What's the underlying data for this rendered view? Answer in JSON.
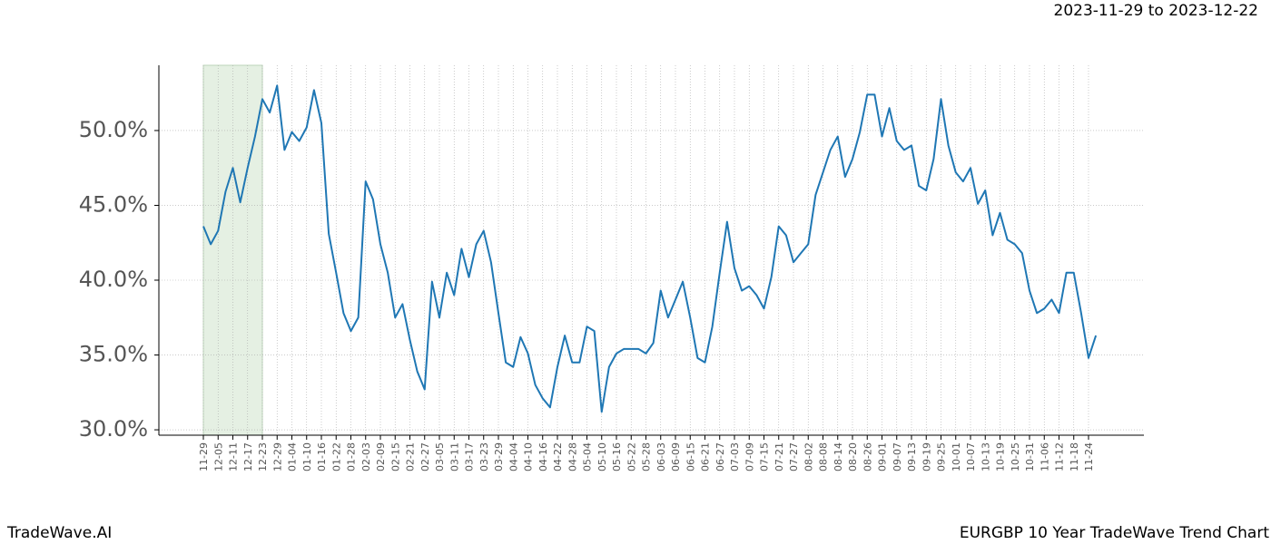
{
  "chart_data": {
    "type": "line",
    "title": "2023-11-29 to 2023-12-22",
    "footer_left": "TradeWave.AI",
    "footer_right": "EURGBP 10 Year TradeWave Trend Chart",
    "categories": [
      "11-29",
      null,
      "12-05",
      null,
      "12-11",
      null,
      "12-17",
      null,
      "12-23",
      null,
      "12-29",
      null,
      "01-04",
      null,
      "01-10",
      null,
      "01-16",
      null,
      "01-22",
      null,
      "01-28",
      null,
      "02-03",
      null,
      "02-09",
      null,
      "02-15",
      null,
      "02-21",
      null,
      "02-27",
      null,
      "03-05",
      null,
      "03-11",
      null,
      "03-17",
      null,
      "03-23",
      null,
      "03-29",
      null,
      "04-04",
      null,
      "04-10",
      null,
      "04-16",
      null,
      "04-22",
      null,
      "04-28",
      null,
      "05-04",
      null,
      "05-10",
      null,
      "05-16",
      null,
      "05-22",
      null,
      "05-28",
      null,
      "06-03",
      null,
      "06-09",
      null,
      "06-15",
      null,
      "06-21",
      null,
      "06-27",
      null,
      "07-03",
      null,
      "07-09",
      null,
      "07-15",
      null,
      "07-21",
      null,
      "07-27",
      null,
      "08-02",
      null,
      "08-08",
      null,
      "08-14",
      null,
      "08-20",
      null,
      "08-26",
      null,
      "09-01",
      null,
      "09-07",
      null,
      "09-13",
      null,
      "09-19",
      null,
      "09-25",
      null,
      "10-01",
      null,
      "10-07",
      null,
      "10-13",
      null,
      "10-19",
      null,
      "10-25",
      null,
      "10-31",
      null,
      "11-06",
      null,
      "11-12",
      null,
      "11-18",
      null,
      "11-24",
      null
    ],
    "values": [
      43.6,
      42.4,
      43.3,
      45.9,
      47.5,
      45.2,
      47.5,
      49.6,
      52.1,
      51.2,
      53.0,
      48.7,
      49.9,
      49.3,
      50.2,
      52.7,
      50.5,
      43.1,
      40.5,
      37.8,
      36.6,
      37.5,
      46.6,
      45.4,
      42.4,
      40.5,
      37.5,
      38.4,
      36.0,
      33.9,
      32.7,
      39.9,
      37.5,
      40.5,
      39.0,
      42.1,
      40.2,
      42.4,
      43.3,
      41.2,
      37.8,
      34.5,
      34.2,
      36.2,
      35.1,
      33.0,
      32.1,
      31.5,
      34.2,
      36.3,
      34.5,
      34.5,
      36.9,
      36.6,
      31.2,
      34.2,
      35.1,
      35.4,
      35.4,
      35.4,
      35.1,
      35.8,
      39.3,
      37.5,
      38.7,
      39.9,
      37.5,
      34.8,
      34.5,
      36.9,
      40.5,
      43.9,
      40.8,
      39.3,
      39.6,
      39.0,
      38.1,
      40.2,
      43.6,
      43.0,
      41.2,
      41.8,
      42.4,
      45.7,
      47.2,
      48.7,
      49.6,
      46.9,
      48.1,
      49.9,
      52.4,
      52.4,
      49.6,
      51.5,
      49.3,
      48.7,
      49.0,
      46.3,
      46.0,
      48.1,
      52.1,
      49.0,
      47.2,
      46.6,
      47.5,
      45.1,
      46.0,
      43.0,
      44.5,
      42.7,
      42.4,
      41.8,
      39.3,
      37.8,
      38.1,
      38.7,
      37.8,
      40.5,
      40.5,
      37.8,
      34.8,
      36.3
    ],
    "color": "#1f77b4",
    "highlight_range": [
      0,
      8
    ],
    "highlight_color": "#e5f0e3",
    "ylim": [
      29.64,
      54.36
    ],
    "yticks": [
      {
        "value": 30,
        "label": "30.0%"
      },
      {
        "value": 35,
        "label": "35.0%"
      },
      {
        "value": 40,
        "label": "40.0%"
      },
      {
        "value": 45,
        "label": "45.0%"
      },
      {
        "value": 50,
        "label": "50.0%"
      }
    ],
    "grid": true
  }
}
